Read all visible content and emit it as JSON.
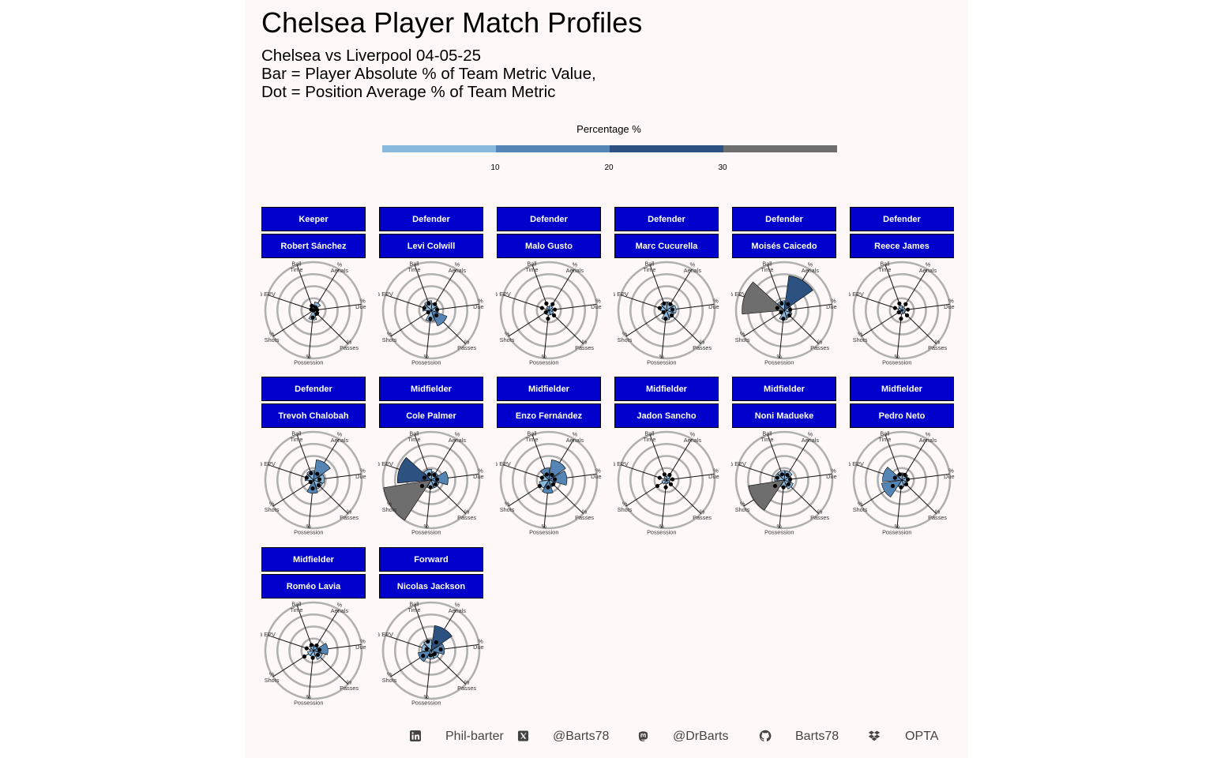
{
  "chart_data": {
    "type": "radar",
    "title": "Chelsea Player Match Profiles",
    "subtitle": [
      "Chelsea vs Liverpool 04-05-25",
      "Bar = Player Absolute % of Team Metric Value,",
      "Dot = Position Average % of Team Metric"
    ],
    "legend": {
      "title": "Percentage %",
      "ticks": [
        10,
        20,
        30
      ],
      "colors": [
        "#8ab9de",
        "#5585b4",
        "#2d5282",
        "#6e6e6e"
      ]
    },
    "radial_axis": {
      "max": 40,
      "rings": [
        10,
        20,
        30,
        40
      ]
    },
    "metrics": [
      {
        "key": "on_ball",
        "label": [
          "% On",
          "Ball",
          "Time"
        ]
      },
      {
        "key": "aerials",
        "label": [
          "%",
          "Aerials"
        ]
      },
      {
        "key": "duels",
        "label": [
          "%",
          "Duels"
        ]
      },
      {
        "key": "passes",
        "label": [
          "%",
          "Passes"
        ]
      },
      {
        "key": "possession",
        "label": [
          "%",
          "Possession"
        ]
      },
      {
        "key": "shots",
        "label": [
          "%",
          "Shots"
        ]
      },
      {
        "key": "epv",
        "label": [
          "% EPV"
        ]
      }
    ],
    "players": [
      {
        "position": "Keeper",
        "name": "Robert Sánchez",
        "values": [
          4,
          7,
          4,
          5,
          8,
          0,
          3
        ],
        "averages": [
          4,
          3,
          3,
          4,
          6,
          0,
          2
        ]
      },
      {
        "position": "Defender",
        "name": "Levi Colwill",
        "values": [
          8,
          6,
          6,
          14,
          9,
          2,
          7
        ],
        "averages": [
          6,
          6,
          5,
          6,
          7,
          3,
          6
        ]
      },
      {
        "position": "Defender",
        "name": "Malo Gusto",
        "values": [
          3,
          4,
          3,
          4,
          4,
          1,
          2
        ],
        "averages": [
          6,
          6,
          5,
          6,
          7,
          3,
          6
        ]
      },
      {
        "position": "Defender",
        "name": "Marc Cucurella",
        "values": [
          7,
          7,
          8,
          7,
          8,
          3,
          5
        ],
        "averages": [
          6,
          6,
          5,
          6,
          7,
          3,
          6
        ]
      },
      {
        "position": "Defender",
        "name": "Moisés Caicedo",
        "values": [
          8,
          29,
          6,
          7,
          8,
          4,
          35
        ],
        "averages": [
          6,
          6,
          5,
          6,
          7,
          3,
          6
        ]
      },
      {
        "position": "Defender",
        "name": "Reece James",
        "values": [
          4,
          3,
          3,
          3,
          3,
          1,
          3
        ],
        "averages": [
          6,
          6,
          5,
          6,
          7,
          3,
          6
        ]
      },
      {
        "position": "Defender",
        "name": "Trevoh Chalobah",
        "values": [
          8,
          17,
          9,
          8,
          11,
          2,
          7
        ],
        "averages": [
          6,
          6,
          5,
          6,
          7,
          3,
          6
        ]
      },
      {
        "position": "Midfielder",
        "name": "Cole Palmer",
        "values": [
          9,
          7,
          14,
          7,
          7,
          40,
          28
        ],
        "averages": [
          5,
          5,
          5,
          5,
          6,
          9,
          6
        ]
      },
      {
        "position": "Midfielder",
        "name": "Enzo Fernández",
        "values": [
          10,
          17,
          15,
          6,
          11,
          8,
          6
        ],
        "averages": [
          5,
          5,
          5,
          5,
          6,
          9,
          6
        ]
      },
      {
        "position": "Midfielder",
        "name": "Jadon Sancho",
        "values": [
          3,
          4,
          3,
          3,
          3,
          4,
          2
        ],
        "averages": [
          5,
          5,
          5,
          5,
          6,
          9,
          6
        ]
      },
      {
        "position": "Midfielder",
        "name": "Noni Madueke",
        "values": [
          8,
          8,
          6,
          8,
          6,
          30,
          8
        ],
        "averages": [
          5,
          5,
          5,
          5,
          6,
          9,
          6
        ]
      },
      {
        "position": "Midfielder",
        "name": "Pedro Neto",
        "values": [
          6,
          6,
          5,
          5,
          6,
          17,
          16
        ],
        "averages": [
          5,
          5,
          5,
          5,
          6,
          9,
          6
        ]
      },
      {
        "position": "Midfielder",
        "name": "Roméo Lavia",
        "values": [
          5,
          4,
          12,
          8,
          5,
          5,
          3
        ],
        "averages": [
          5,
          5,
          5,
          5,
          6,
          9,
          6
        ]
      },
      {
        "position": "Forward",
        "name": "Nicolas Jackson",
        "values": [
          9,
          21,
          11,
          7,
          7,
          11,
          8
        ],
        "averages": [
          8,
          8,
          8,
          4,
          4,
          8,
          4
        ]
      }
    ]
  },
  "footer": [
    {
      "icon": "linkedin-icon",
      "text": "Phil-barter"
    },
    {
      "icon": "x-twitter-icon",
      "text": "@Barts78"
    },
    {
      "icon": "mastodon-icon",
      "text": "@DrBarts"
    },
    {
      "icon": "github-icon",
      "text": "Barts78"
    },
    {
      "icon": "dropbox-icon",
      "text": "OPTA"
    }
  ]
}
